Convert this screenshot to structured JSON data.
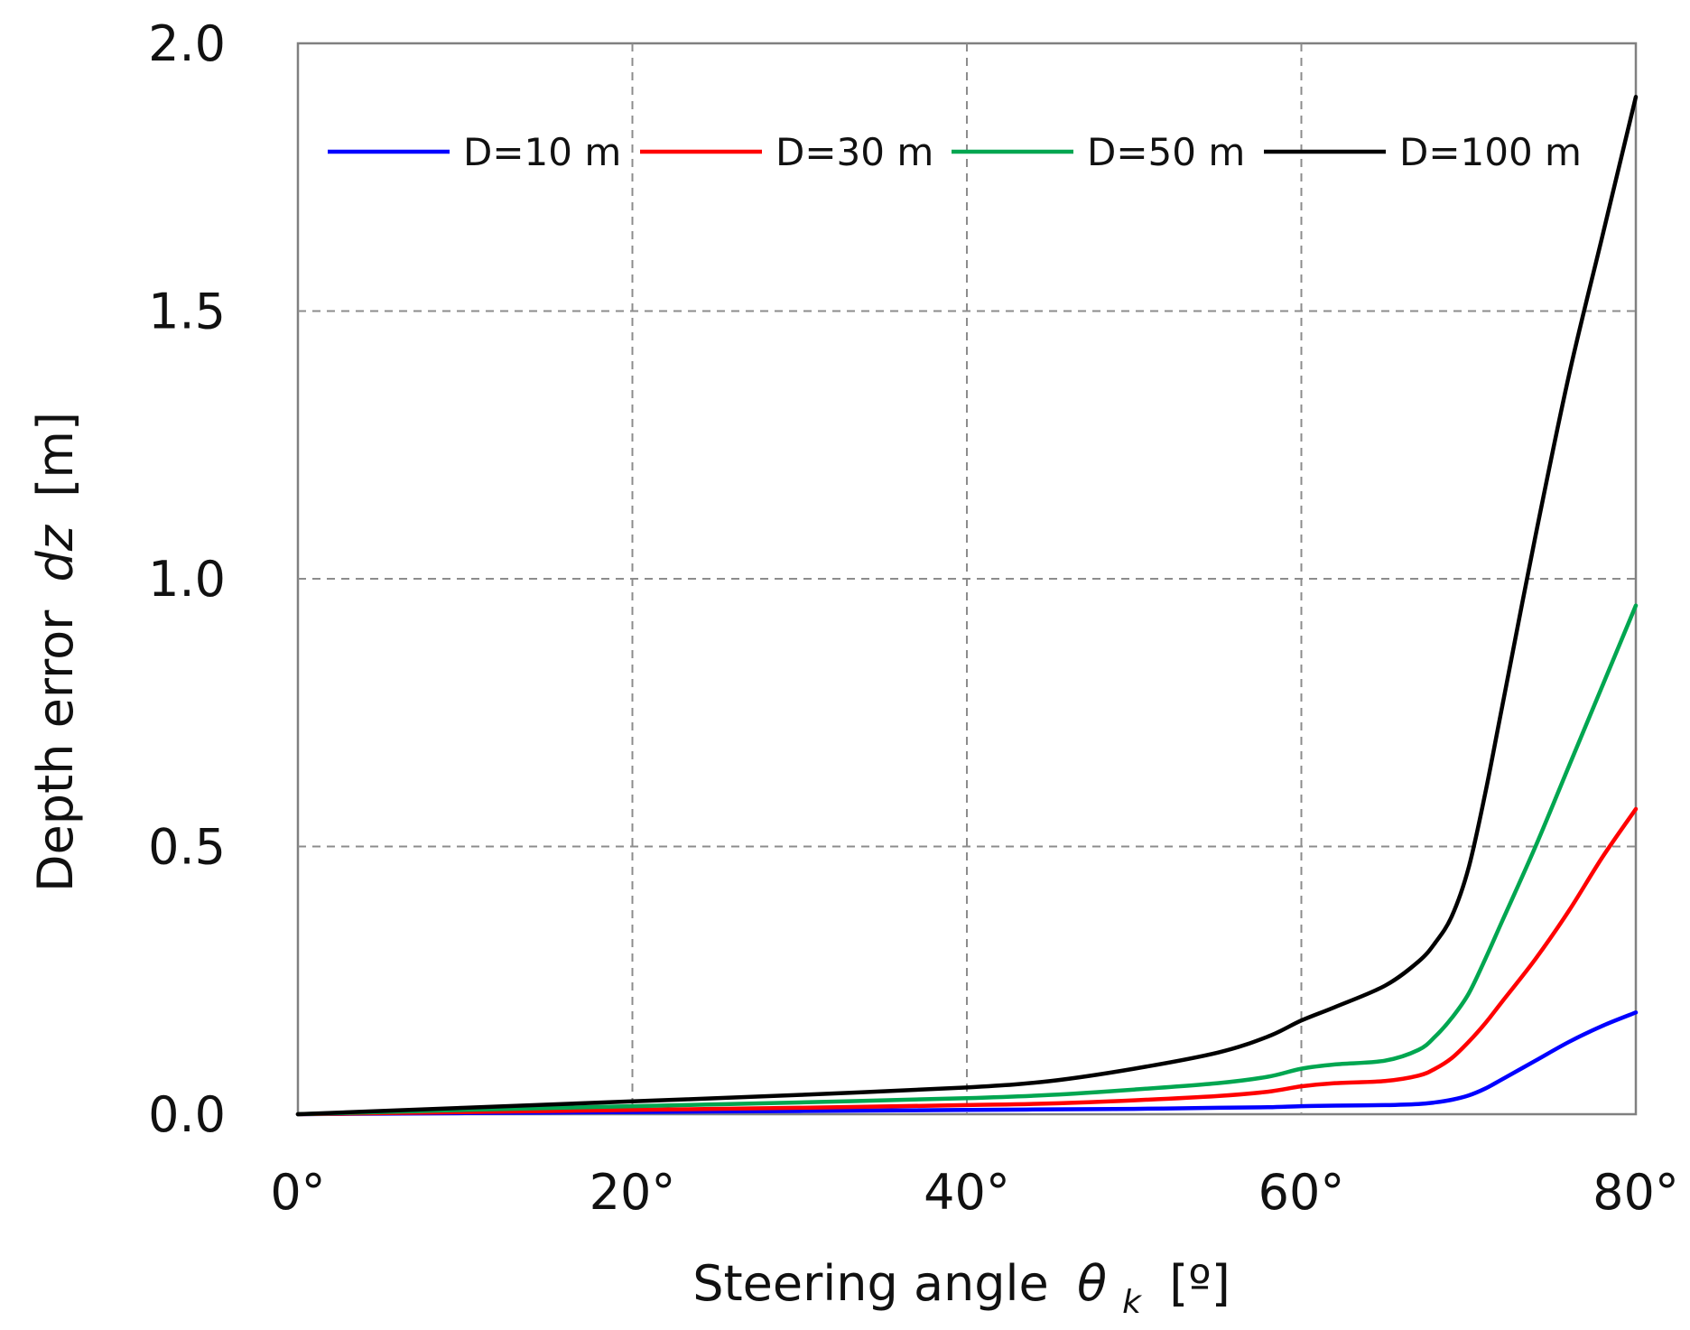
{
  "chart_data": {
    "type": "line",
    "title": "",
    "xlabel": "Steering angle",
    "xlabel_symbol": "θ",
    "xlabel_subscript": "k",
    "xlabel_unit": "[º]",
    "ylabel": "Depth error",
    "ylabel_symbol": "dz",
    "ylabel_unit": "[m]",
    "xlim": [
      0,
      80
    ],
    "ylim": [
      0,
      2.0
    ],
    "xticks": [
      0,
      20,
      40,
      60,
      80
    ],
    "xtick_labels": [
      "0°",
      "20°",
      "40°",
      "60°",
      "80°"
    ],
    "yticks": [
      0,
      0.5,
      1.0,
      1.5,
      2.0
    ],
    "ytick_labels": [
      "0.0",
      "0.5",
      "1.0",
      "1.5",
      "2.0"
    ],
    "grid": true,
    "legend": "top-center, horizontal",
    "x": [
      0,
      10,
      20,
      30,
      40,
      45,
      50,
      55,
      58,
      60,
      62,
      65,
      67,
      68,
      69,
      70,
      71,
      72,
      74,
      76,
      78,
      80
    ],
    "series": [
      {
        "name": "D=10 m",
        "color": "#0000ff",
        "values": [
          0,
          0.002,
          0.004,
          0.006,
          0.008,
          0.009,
          0.01,
          0.012,
          0.013,
          0.015,
          0.016,
          0.017,
          0.019,
          0.022,
          0.027,
          0.035,
          0.048,
          0.065,
          0.1,
          0.135,
          0.165,
          0.19
        ]
      },
      {
        "name": "D=30 m",
        "color": "#ff0000",
        "values": [
          0,
          0.004,
          0.008,
          0.012,
          0.017,
          0.02,
          0.026,
          0.034,
          0.042,
          0.052,
          0.058,
          0.062,
          0.072,
          0.085,
          0.105,
          0.135,
          0.17,
          0.21,
          0.29,
          0.38,
          0.48,
          0.57
        ]
      },
      {
        "name": "D=50 m",
        "color": "#00a650",
        "values": [
          0,
          0.008,
          0.015,
          0.022,
          0.03,
          0.036,
          0.046,
          0.058,
          0.07,
          0.085,
          0.093,
          0.1,
          0.12,
          0.145,
          0.18,
          0.225,
          0.29,
          0.36,
          0.5,
          0.65,
          0.8,
          0.95
        ]
      },
      {
        "name": "D=100 m",
        "color": "#000000",
        "values": [
          0,
          0.012,
          0.024,
          0.036,
          0.05,
          0.062,
          0.085,
          0.115,
          0.145,
          0.175,
          0.2,
          0.24,
          0.285,
          0.32,
          0.37,
          0.46,
          0.6,
          0.76,
          1.08,
          1.38,
          1.64,
          1.9
        ]
      }
    ]
  }
}
